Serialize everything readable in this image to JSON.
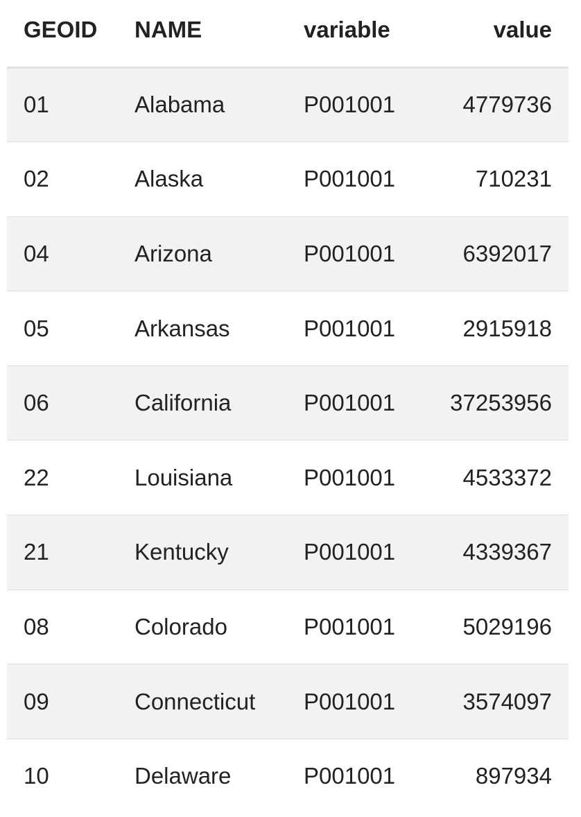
{
  "table": {
    "columns": [
      "GEOID",
      "NAME",
      "variable",
      "value"
    ],
    "rows": [
      {
        "geoid": "01",
        "name": "Alabama",
        "variable": "P001001",
        "value": "4779736"
      },
      {
        "geoid": "02",
        "name": "Alaska",
        "variable": "P001001",
        "value": "710231"
      },
      {
        "geoid": "04",
        "name": "Arizona",
        "variable": "P001001",
        "value": "6392017"
      },
      {
        "geoid": "05",
        "name": "Arkansas",
        "variable": "P001001",
        "value": "2915918"
      },
      {
        "geoid": "06",
        "name": "California",
        "variable": "P001001",
        "value": "37253956"
      },
      {
        "geoid": "22",
        "name": "Louisiana",
        "variable": "P001001",
        "value": "4533372"
      },
      {
        "geoid": "21",
        "name": "Kentucky",
        "variable": "P001001",
        "value": "4339367"
      },
      {
        "geoid": "08",
        "name": "Colorado",
        "variable": "P001001",
        "value": "5029196"
      },
      {
        "geoid": "09",
        "name": "Connecticut",
        "variable": "P001001",
        "value": "3574097"
      },
      {
        "geoid": "10",
        "name": "Delaware",
        "variable": "P001001",
        "value": "897934"
      }
    ]
  }
}
